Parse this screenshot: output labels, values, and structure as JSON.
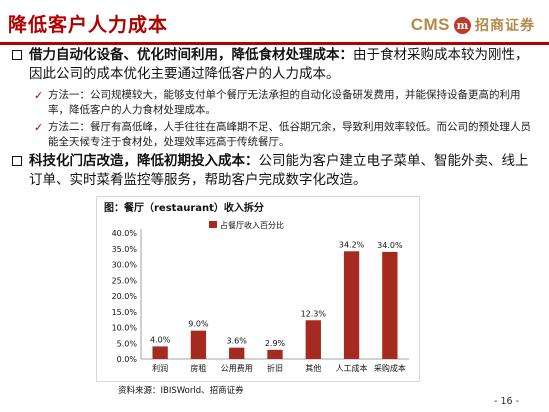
{
  "header": {
    "title": "降低客户人力成本",
    "logo_latin": "CMS",
    "logo_seal": "m",
    "logo_cn": "招商证券"
  },
  "bullets": [
    {
      "heading": "借力自动化设备、优化时间利用，降低食材处理成本：",
      "body": "由于食材采购成本较为刚性，因此公司的成本优化主要通过降低客户的人力成本。",
      "subs": [
        "方法一：公司规模较大，能够支付单个餐厅无法承担的自动化设备研发费用，并能保持设备更高的利用率，降低客户的人力食材处理成本。",
        "方法二：餐厅有高低峰，人手往往在高峰期不足、低谷期冗余，导致利用效率较低。而公司的预处理人员能全天候专注于食材处，处理效率远高于传统餐厅。"
      ]
    },
    {
      "heading": "科技化门店改造，降低初期投入成本：",
      "body": "公司能为客户建立电子菜单、智能外卖、线上订单、实时菜肴监控等服务，帮助客户完成数字化改造。",
      "subs": []
    }
  ],
  "chart_caption": "图：餐厅（restaurant）收入拆分",
  "chart_source": "资料来源：IBISWorld、招商证券",
  "page_number": "- 16 -",
  "chart_data": {
    "type": "bar",
    "title": "",
    "categories": [
      "利润",
      "房租",
      "公用费用",
      "折旧",
      "其他",
      "人工成本",
      "采购成本"
    ],
    "series": [
      {
        "name": "占餐厅收入百分比",
        "values": [
          4.0,
          9.0,
          3.6,
          2.9,
          12.3,
          34.2,
          34.0
        ],
        "color": "#a52a1f"
      }
    ],
    "data_labels": [
      "4.0%",
      "9.0%",
      "3.6%",
      "2.9%",
      "12.3%",
      "34.2%",
      "34.0%"
    ],
    "yticks": [
      "0.0%",
      "5.0%",
      "10.0%",
      "15.0%",
      "20.0%",
      "25.0%",
      "30.0%",
      "35.0%",
      "40.0%"
    ],
    "ylim": [
      0,
      40
    ],
    "xlabel": "",
    "ylabel": "",
    "grid": false,
    "legend": "top-left"
  }
}
